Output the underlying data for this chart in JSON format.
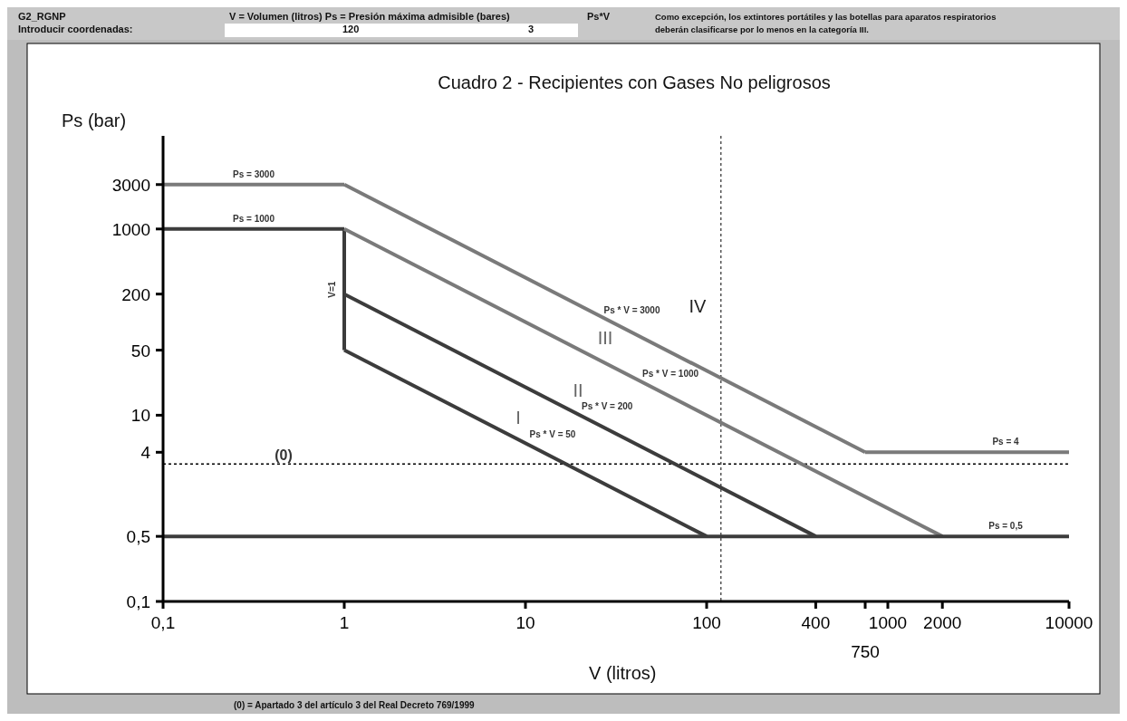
{
  "chart_data": {
    "type": "line",
    "title": "Cuadro 2 - Recipientes con Gases No peligrosos",
    "xlabel": "V (litros)",
    "ylabel": "Ps (bar)",
    "log": "xy",
    "grid": false,
    "marker": "none",
    "line_style": "solid",
    "xlim": [
      0.1,
      10000
    ],
    "ylim": [
      0.1,
      10000
    ],
    "xticks": [
      {
        "value": 0.1,
        "label": "0,1"
      },
      1,
      10,
      100,
      400,
      {
        "value": 750,
        "label": null
      },
      1000,
      2000,
      10000
    ],
    "yticks": [
      {
        "value": 0.1,
        "label": "0,1"
      },
      {
        "value": 0.5,
        "label": "0,5"
      },
      4,
      10,
      50,
      200,
      1000,
      3000
    ],
    "series": [
      {
        "name": "Ps = 3000",
        "color": "#7a7a7a",
        "x": [
          0.1,
          1
        ],
        "values": [
          3000,
          3000
        ]
      },
      {
        "name": "Ps = 1000",
        "color": "#3c3c3c",
        "x": [
          0.1,
          1
        ],
        "values": [
          1000,
          1000
        ]
      },
      {
        "name": "V=1",
        "color": "#3c3c3c",
        "x": [
          1,
          1
        ],
        "values": [
          1000,
          50
        ]
      },
      {
        "name": "Ps * V = 3000",
        "color": "#7a7a7a",
        "x": [
          1,
          750
        ],
        "values": [
          3000,
          4
        ]
      },
      {
        "name": "Ps * V = 200",
        "color": "#3c3c3c",
        "x": [
          1,
          400
        ],
        "values": [
          200,
          0.5
        ]
      },
      {
        "name": "Ps * V = 50",
        "color": "#3c3c3c",
        "x": [
          1,
          100
        ],
        "values": [
          50,
          0.5
        ]
      },
      {
        "name": "Ps * V = 1000",
        "color": "#7a7a7a",
        "x": [
          1,
          2000
        ],
        "values": [
          1000,
          0.5
        ]
      },
      {
        "name": "Ps = 4",
        "color": "#7a7a7a",
        "x": [
          750,
          10000
        ],
        "values": [
          4,
          4
        ]
      },
      {
        "name": "Ps = 0,5",
        "color": "#3c3c3c",
        "x": [
          0.1,
          10000
        ],
        "values": [
          0.5,
          0.5
        ]
      }
    ],
    "ref_lines": [
      {
        "axis": "y",
        "value": 3,
        "line_style": "dotted",
        "color": "#000000"
      },
      {
        "axis": "x",
        "value": 120,
        "line_style": "dotted",
        "color": "#000000"
      }
    ],
    "annotations": [
      "G2_RGNP",
      "V = Volumen (litros)   Ps = Presión máxima admisible (bares)",
      "Ps*V",
      "Como excepción, los extintores portátiles y las botellas para aparatos respiratorios",
      "Introducir coordenadas:",
      "120",
      "3",
      "deberán clasificarse por lo menos en la categoría III.",
      "(0) = Apartado 3 del artículo 3 del Real Decreto 769/1999",
      "750",
      "(0)",
      "I",
      "II",
      "III",
      "IV"
    ]
  }
}
